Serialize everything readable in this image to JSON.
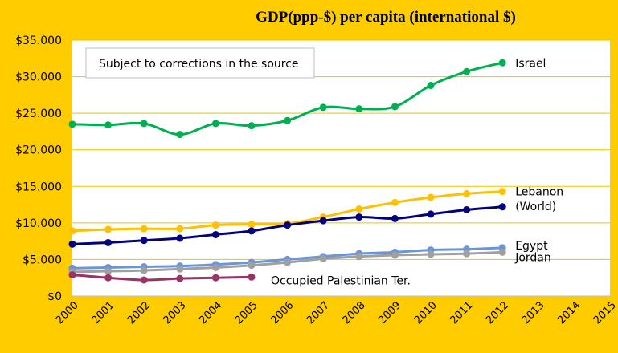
{
  "chart_data": {
    "type": "line",
    "title": "GDP(ppp-$) per capita (international  $)",
    "annotation": "Subject to corrections  in the source",
    "x_ticks": [
      "2000",
      "2001",
      "2002",
      "2003",
      "2004",
      "2005",
      "2006",
      "2007",
      "2008",
      "2009",
      "2010",
      "2011",
      "2012",
      "2013",
      "2014",
      "2015"
    ],
    "y_ticks": [
      "$0",
      "$5.000",
      "$10.000",
      "$15.000",
      "$20.000",
      "$25.000",
      "$30.000",
      "$35.000"
    ],
    "xlim": [
      2000,
      2015
    ],
    "ylim": [
      0,
      35000
    ],
    "grid": true,
    "colors": {
      "background": "#FFCC00",
      "plot_area": "#FFFFFF",
      "grid": "#E8C400"
    },
    "series": [
      {
        "name": "Israel",
        "label_lines": [
          "Israel"
        ],
        "color": "#00B050",
        "x": [
          2000,
          2001,
          2002,
          2003,
          2004,
          2005,
          2006,
          2007,
          2008,
          2009,
          2010,
          2011,
          2012
        ],
        "values": [
          23500,
          23400,
          23600,
          22100,
          23600,
          23300,
          24000,
          25800,
          25600,
          25900,
          28800,
          30700,
          31900
        ]
      },
      {
        "name": "Lebanon",
        "label_lines": [
          "Lebanon"
        ],
        "color": "#FFC000",
        "x": [
          2000,
          2001,
          2002,
          2003,
          2004,
          2005,
          2006,
          2007,
          2008,
          2009,
          2010,
          2011,
          2012
        ],
        "values": [
          8900,
          9100,
          9200,
          9200,
          9700,
          9800,
          9900,
          10800,
          11900,
          12800,
          13500,
          14000,
          14300
        ]
      },
      {
        "name": "(World)",
        "label_lines": [
          "(World)"
        ],
        "color": "#000080",
        "x": [
          2000,
          2001,
          2002,
          2003,
          2004,
          2005,
          2006,
          2007,
          2008,
          2009,
          2010,
          2011,
          2012
        ],
        "values": [
          7100,
          7300,
          7600,
          7900,
          8400,
          8900,
          9700,
          10300,
          10800,
          10600,
          11200,
          11800,
          12200
        ]
      },
      {
        "name": "Egypt",
        "label_lines": [
          "Egypt"
        ],
        "color": "#6A96D8",
        "x": [
          2000,
          2001,
          2002,
          2003,
          2004,
          2005,
          2006,
          2007,
          2008,
          2009,
          2010,
          2011,
          2012
        ],
        "values": [
          3800,
          3900,
          4000,
          4100,
          4300,
          4600,
          5000,
          5400,
          5800,
          6000,
          6300,
          6400,
          6600
        ]
      },
      {
        "name": "Jordan",
        "label_lines": [
          "Jordan"
        ],
        "color": "#A0A0A0",
        "x": [
          2000,
          2001,
          2002,
          2003,
          2004,
          2005,
          2006,
          2007,
          2008,
          2009,
          2010,
          2011,
          2012
        ],
        "values": [
          3300,
          3400,
          3500,
          3700,
          3900,
          4200,
          4600,
          5100,
          5400,
          5600,
          5700,
          5800,
          6000
        ]
      },
      {
        "name": "Occupied Palestinian Ter.",
        "label_lines": [
          "Occupied  Palestinian  Ter."
        ],
        "color": "#993366",
        "x": [
          2000,
          2001,
          2002,
          2003,
          2004,
          2005
        ],
        "values": [
          2900,
          2500,
          2200,
          2400,
          2500,
          2600
        ]
      }
    ]
  }
}
